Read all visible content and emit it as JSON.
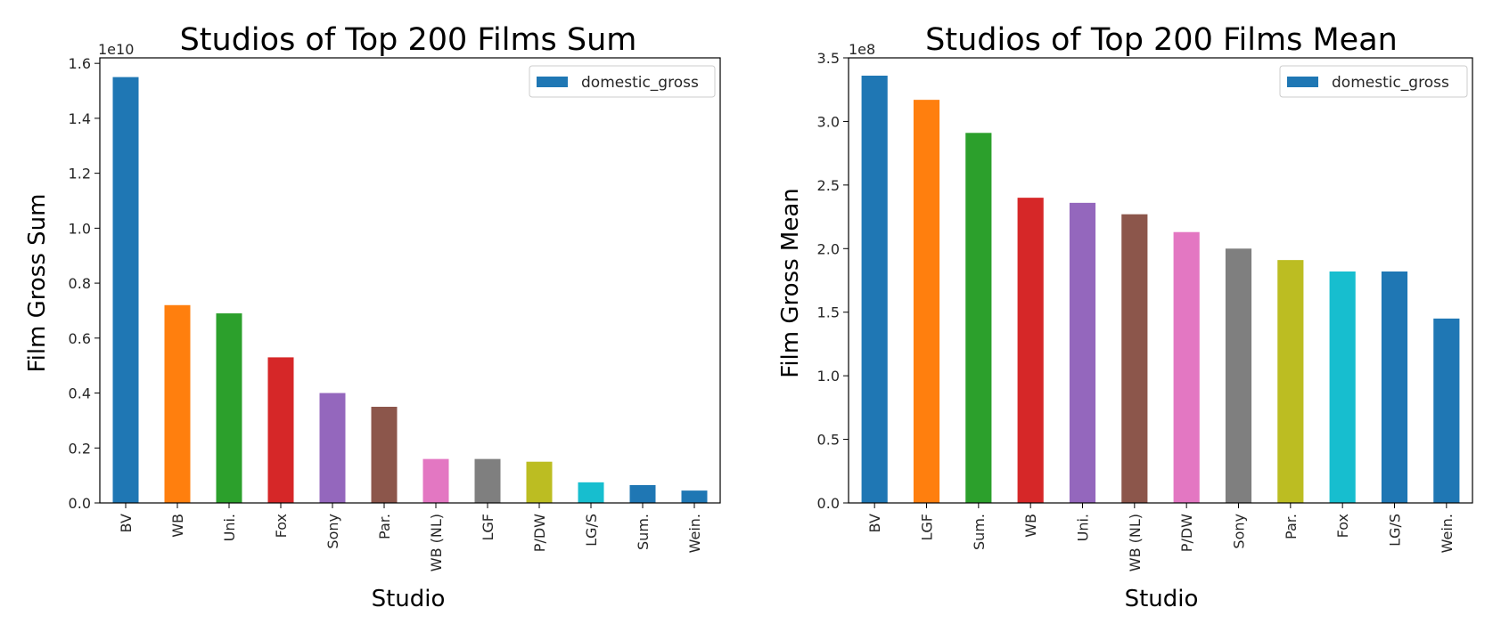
{
  "chart_data": [
    {
      "type": "bar",
      "title": "Studios of Top 200 Films Sum",
      "xlabel": "Studio",
      "ylabel": "Film Gross Sum",
      "offset_label": "1e10",
      "ylim": [
        0,
        1.62
      ],
      "yticks": [
        "0.0",
        "0.2",
        "0.4",
        "0.6",
        "0.8",
        "1.0",
        "1.2",
        "1.4",
        "1.6"
      ],
      "ytick_values": [
        0.0,
        0.2,
        0.4,
        0.6,
        0.8,
        1.0,
        1.2,
        1.4,
        1.6
      ],
      "categories": [
        "BV",
        "WB",
        "Uni.",
        "Fox",
        "Sony",
        "Par.",
        "WB (NL)",
        "LGF",
        "P/DW",
        "LG/S",
        "Sum.",
        "Wein."
      ],
      "series": [
        {
          "name": "domestic_gross",
          "values": [
            1.55,
            0.72,
            0.69,
            0.53,
            0.4,
            0.35,
            0.16,
            0.16,
            0.15,
            0.075,
            0.065,
            0.045
          ]
        }
      ],
      "colors": [
        "#1f77b4",
        "#ff7f0e",
        "#2ca02c",
        "#d62728",
        "#9467bd",
        "#8c564b",
        "#e377c2",
        "#7f7f7f",
        "#bcbd22",
        "#17becf",
        "#1f77b4",
        "#1f77b4"
      ],
      "legend": {
        "placement": "top-right",
        "entries": [
          "domestic_gross"
        ],
        "swatch_color": "#1f77b4"
      },
      "grid": false
    },
    {
      "type": "bar",
      "title": "Studios of Top 200 Films Mean",
      "xlabel": "Studio",
      "ylabel": "Film Gross Mean",
      "offset_label": "1e8",
      "ylim": [
        0,
        3.5
      ],
      "yticks": [
        "0.0",
        "0.5",
        "1.0",
        "1.5",
        "2.0",
        "2.5",
        "3.0",
        "3.5"
      ],
      "ytick_values": [
        0.0,
        0.5,
        1.0,
        1.5,
        2.0,
        2.5,
        3.0,
        3.5
      ],
      "categories": [
        "BV",
        "LGF",
        "Sum.",
        "WB",
        "Uni.",
        "WB (NL)",
        "P/DW",
        "Sony",
        "Par.",
        "Fox",
        "LG/S",
        "Wein."
      ],
      "series": [
        {
          "name": "domestic_gross",
          "values": [
            3.36,
            3.17,
            2.91,
            2.4,
            2.36,
            2.27,
            2.13,
            2.0,
            1.91,
            1.82,
            1.82,
            1.45
          ]
        }
      ],
      "colors": [
        "#1f77b4",
        "#ff7f0e",
        "#2ca02c",
        "#d62728",
        "#9467bd",
        "#8c564b",
        "#e377c2",
        "#7f7f7f",
        "#bcbd22",
        "#17becf",
        "#1f77b4",
        "#1f77b4"
      ],
      "legend": {
        "placement": "top-right",
        "entries": [
          "domestic_gross"
        ],
        "swatch_color": "#1f77b4"
      },
      "grid": false
    }
  ]
}
